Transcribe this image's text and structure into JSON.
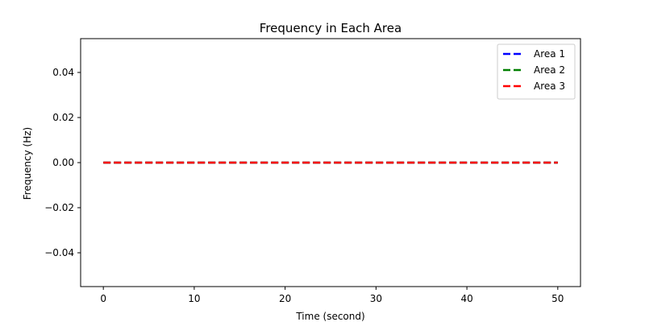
{
  "chart_data": {
    "type": "line",
    "title": "Frequency in Each Area",
    "xlabel": "Time (second)",
    "ylabel": "Frequency (Hz)",
    "xlim": [
      -2.5,
      52.5
    ],
    "ylim": [
      -0.055,
      0.055
    ],
    "x_ticks": [
      0,
      10,
      20,
      30,
      40,
      50
    ],
    "x_tick_labels": [
      "0",
      "10",
      "20",
      "30",
      "40",
      "50"
    ],
    "y_ticks": [
      0.04,
      0.02,
      0.0,
      -0.02,
      -0.04
    ],
    "y_tick_labels": [
      "0.04",
      "0.02",
      "0.00",
      "−0.02",
      "−0.04"
    ],
    "x": [
      0,
      50
    ],
    "grid": false,
    "legend_position": "top-right",
    "series": [
      {
        "name": "Area 1",
        "color": "#0000ff",
        "line_style": "dashed",
        "values": [
          0.0,
          0.0
        ]
      },
      {
        "name": "Area 2",
        "color": "#008000",
        "line_style": "dashed",
        "values": [
          0.0,
          0.0
        ]
      },
      {
        "name": "Area 3",
        "color": "#ff0000",
        "line_style": "dashed",
        "values": [
          0.0,
          0.0
        ]
      }
    ]
  }
}
